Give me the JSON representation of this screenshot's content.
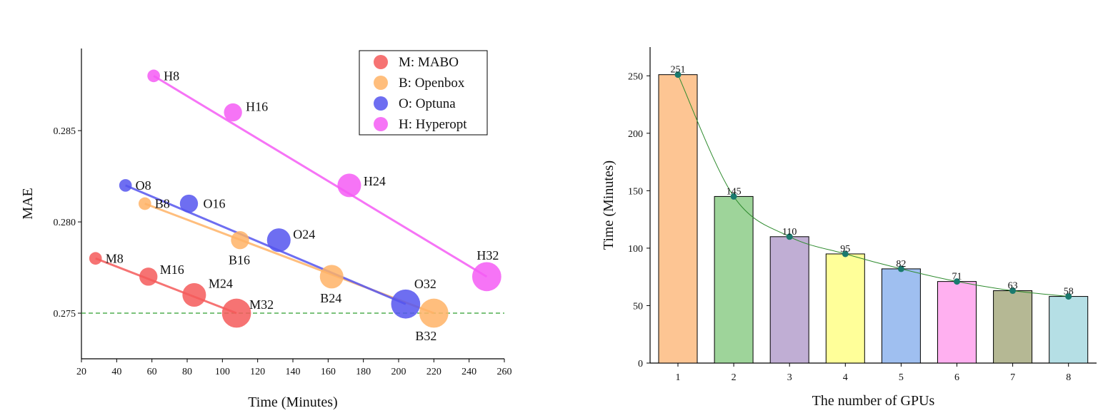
{
  "chart_data": [
    {
      "type": "scatter",
      "xlabel": "Time (Minutes)",
      "ylabel": "MAE",
      "xlim": [
        20,
        260
      ],
      "ylim": [
        0.2725,
        0.2895
      ],
      "x_ticks": [
        20,
        40,
        60,
        80,
        100,
        120,
        140,
        160,
        180,
        200,
        220,
        240,
        260
      ],
      "y_ticks": [
        0.275,
        0.28,
        0.285
      ],
      "y_tick_labels": [
        "0.275",
        "0.280",
        "0.285"
      ],
      "reference_line": {
        "y": 0.275,
        "style": "dashed",
        "color": "#2e9e2e"
      },
      "legend_position": "top-right",
      "series": [
        {
          "name": "M: MABO",
          "color": "#f45b5b",
          "points": [
            {
              "label": "M8",
              "x": 28,
              "y": 0.278,
              "size": 8
            },
            {
              "label": "M16",
              "x": 58,
              "y": 0.277,
              "size": 16
            },
            {
              "label": "M24",
              "x": 84,
              "y": 0.276,
              "size": 24
            },
            {
              "label": "M32",
              "x": 108,
              "y": 0.275,
              "size": 32
            }
          ]
        },
        {
          "name": "B: Openbox",
          "color": "#ffb366",
          "points": [
            {
              "label": "B8",
              "x": 56,
              "y": 0.281,
              "size": 8
            },
            {
              "label": "B16",
              "x": 110,
              "y": 0.279,
              "size": 16
            },
            {
              "label": "B24",
              "x": 162,
              "y": 0.277,
              "size": 24
            },
            {
              "label": "B32",
              "x": 220,
              "y": 0.275,
              "size": 32
            }
          ]
        },
        {
          "name": "O: Optuna",
          "color": "#5555ee",
          "points": [
            {
              "label": "O8",
              "x": 45,
              "y": 0.282,
              "size": 8
            },
            {
              "label": "O16",
              "x": 81,
              "y": 0.281,
              "size": 16
            },
            {
              "label": "O24",
              "x": 132,
              "y": 0.279,
              "size": 24
            },
            {
              "label": "O32",
              "x": 204,
              "y": 0.2755,
              "size": 32
            }
          ]
        },
        {
          "name": "H: Hyperopt",
          "color": "#f55cf5",
          "points": [
            {
              "label": "H8",
              "x": 61,
              "y": 0.288,
              "size": 8
            },
            {
              "label": "H16",
              "x": 106,
              "y": 0.286,
              "size": 16
            },
            {
              "label": "H24",
              "x": 172,
              "y": 0.282,
              "size": 24
            },
            {
              "label": "H32",
              "x": 250,
              "y": 0.277,
              "size": 32
            }
          ]
        }
      ]
    },
    {
      "type": "bar",
      "xlabel": "The number of GPUs",
      "ylabel": "Time (Minutes)",
      "ylim": [
        0,
        275
      ],
      "y_ticks": [
        0,
        50,
        100,
        150,
        200,
        250
      ],
      "categories": [
        "1",
        "2",
        "3",
        "4",
        "5",
        "6",
        "7",
        "8"
      ],
      "values": [
        251,
        145,
        110,
        95,
        82,
        71,
        63,
        58
      ],
      "bar_colors": [
        "#fdc593",
        "#9ed49a",
        "#c0aed4",
        "#ffff99",
        "#9fbff0",
        "#ffb0f0",
        "#b5b894",
        "#b5dfe5"
      ],
      "line_color": "#2e8b2e",
      "marker_color": "#1a7a6e"
    }
  ]
}
